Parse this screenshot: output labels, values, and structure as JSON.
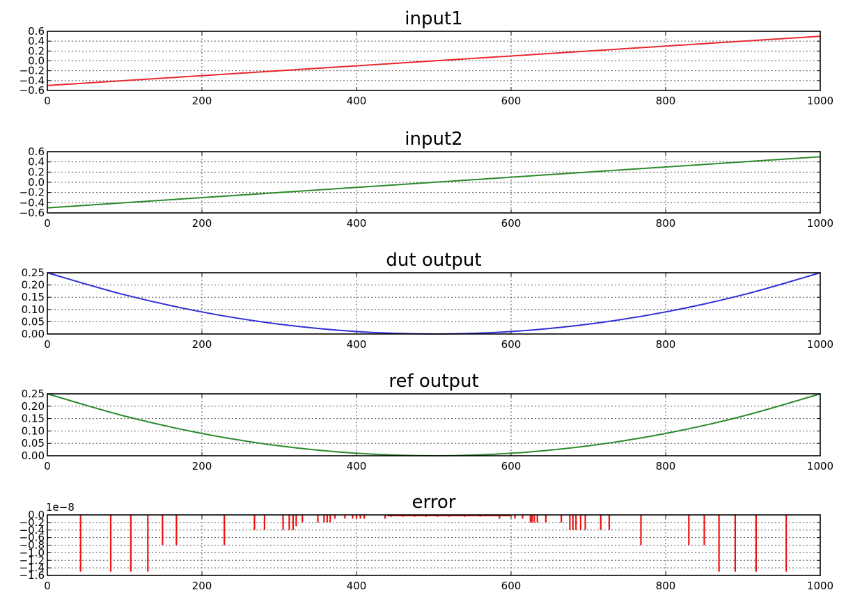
{
  "chart_data": [
    {
      "type": "line",
      "title": "input1",
      "xlim": [
        0,
        1000
      ],
      "ylim": [
        -0.6,
        0.6
      ],
      "x_ticks": [
        "0",
        "200",
        "400",
        "600",
        "800",
        "1000"
      ],
      "y_ticks": [
        "0.6",
        "0.4",
        "0.2",
        "0.0",
        "−0.2",
        "−0.4",
        "−0.6"
      ],
      "grid": true,
      "series": [
        {
          "color": "#e8282d",
          "x": [
            0,
            1000
          ],
          "y": [
            -0.5,
            0.5
          ]
        }
      ]
    },
    {
      "type": "line",
      "title": "input2",
      "xlim": [
        0,
        1000
      ],
      "ylim": [
        -0.6,
        0.6
      ],
      "x_ticks": [
        "0",
        "200",
        "400",
        "600",
        "800",
        "1000"
      ],
      "y_ticks": [
        "0.6",
        "0.4",
        "0.2",
        "0.0",
        "−0.2",
        "−0.4",
        "−0.6"
      ],
      "grid": true,
      "series": [
        {
          "color": "#2b8a2b",
          "x": [
            0,
            1000
          ],
          "y": [
            -0.5,
            0.5
          ]
        }
      ]
    },
    {
      "type": "line",
      "title": "dut output",
      "xlim": [
        0,
        1000
      ],
      "ylim": [
        0,
        0.25
      ],
      "x_ticks": [
        "0",
        "200",
        "400",
        "600",
        "800",
        "1000"
      ],
      "y_ticks": [
        "0.25",
        "0.20",
        "0.15",
        "0.10",
        "0.05",
        "0.00"
      ],
      "grid": true,
      "series": [
        {
          "color": "#3030d8",
          "x": [
            0,
            100,
            200,
            300,
            400,
            500,
            600,
            700,
            800,
            900,
            1000
          ],
          "y": [
            0.25,
            0.16,
            0.09,
            0.04,
            0.01,
            0.0,
            0.01,
            0.04,
            0.09,
            0.16,
            0.25
          ]
        }
      ]
    },
    {
      "type": "line",
      "title": "ref output",
      "xlim": [
        0,
        1000
      ],
      "ylim": [
        0,
        0.25
      ],
      "x_ticks": [
        "0",
        "200",
        "400",
        "600",
        "800",
        "1000"
      ],
      "y_ticks": [
        "0.25",
        "0.20",
        "0.15",
        "0.10",
        "0.05",
        "0.00"
      ],
      "grid": true,
      "series": [
        {
          "color": "#2b8a2b",
          "x": [
            0,
            100,
            200,
            300,
            400,
            500,
            600,
            700,
            800,
            900,
            1000
          ],
          "y": [
            0.25,
            0.16,
            0.09,
            0.04,
            0.01,
            0.0,
            0.01,
            0.04,
            0.09,
            0.16,
            0.25
          ]
        }
      ]
    },
    {
      "type": "line",
      "title": "error",
      "offset_label": "1e−8",
      "xlim": [
        0,
        1000
      ],
      "ylim": [
        -1.6,
        0.0
      ],
      "x_ticks": [
        "0",
        "200",
        "400",
        "600",
        "800",
        "1000"
      ],
      "y_ticks": [
        "0.0",
        "−0.2",
        "−0.4",
        "−0.6",
        "−0.8",
        "−1.0",
        "−1.2",
        "−1.4",
        "−1.6"
      ],
      "grid": true,
      "series": [
        {
          "color": "#ee1111",
          "spikes_x": [
            43,
            82,
            108,
            130,
            149,
            167,
            229,
            268,
            281,
            305,
            313,
            318,
            322,
            330,
            350,
            358,
            362,
            366,
            372,
            385,
            395,
            400,
            405,
            410,
            437,
            445,
            460,
            475,
            490,
            505,
            520,
            540,
            560,
            585,
            605,
            615,
            625,
            627,
            630,
            634,
            645,
            665,
            676,
            680,
            684,
            690,
            696,
            716,
            727,
            768,
            830,
            850,
            869,
            890,
            917,
            956
          ],
          "spikes_y": [
            -1.5,
            -1.5,
            -1.5,
            -1.5,
            -0.8,
            -0.8,
            -0.8,
            -0.4,
            -0.4,
            -0.4,
            -0.4,
            -0.4,
            -0.3,
            -0.2,
            -0.2,
            -0.2,
            -0.2,
            -0.2,
            -0.1,
            -0.1,
            -0.1,
            -0.1,
            -0.1,
            -0.1,
            -0.1,
            -0.05,
            -0.05,
            -0.05,
            -0.05,
            -0.05,
            -0.05,
            -0.05,
            -0.05,
            -0.1,
            -0.1,
            -0.1,
            -0.2,
            -0.2,
            -0.2,
            -0.2,
            -0.2,
            -0.2,
            -0.4,
            -0.4,
            -0.4,
            -0.4,
            -0.4,
            -0.4,
            -0.4,
            -0.8,
            -0.8,
            -0.8,
            -1.5,
            -1.5,
            -1.5,
            -1.5
          ]
        }
      ]
    }
  ]
}
